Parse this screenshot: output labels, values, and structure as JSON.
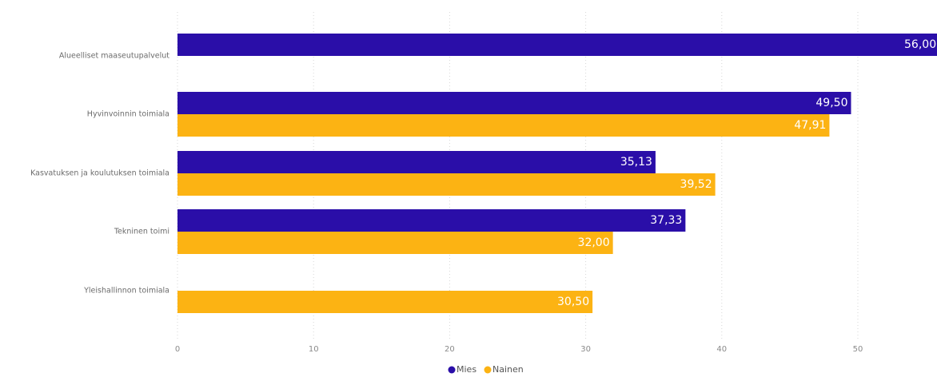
{
  "chart_data": {
    "type": "bar",
    "orientation": "horizontal",
    "categories": [
      "Alueelliset maaseutupalvelut",
      "Hyvinvoinnin toimiala",
      "Kasvatuksen ja koulutuksen toimiala",
      "Tekninen toimi",
      "Yleishallinnon toimiala"
    ],
    "series": [
      {
        "name": "Mies",
        "color": "#2a0ea8",
        "values": [
          56.0,
          49.5,
          35.13,
          37.33,
          null
        ],
        "labels": [
          "56,00",
          "49,50",
          "35,13",
          "37,33",
          ""
        ]
      },
      {
        "name": "Nainen",
        "color": "#fcb313",
        "values": [
          null,
          47.91,
          39.52,
          32.0,
          30.5
        ],
        "labels": [
          "",
          "47,91",
          "39,52",
          "32,00",
          "30,50"
        ]
      }
    ],
    "xticks": [
      0,
      10,
      20,
      30,
      40,
      50
    ],
    "xlim": [
      0,
      56
    ],
    "grid": true,
    "legend_position": "bottom-center",
    "title": "",
    "xlabel": "",
    "ylabel": ""
  }
}
